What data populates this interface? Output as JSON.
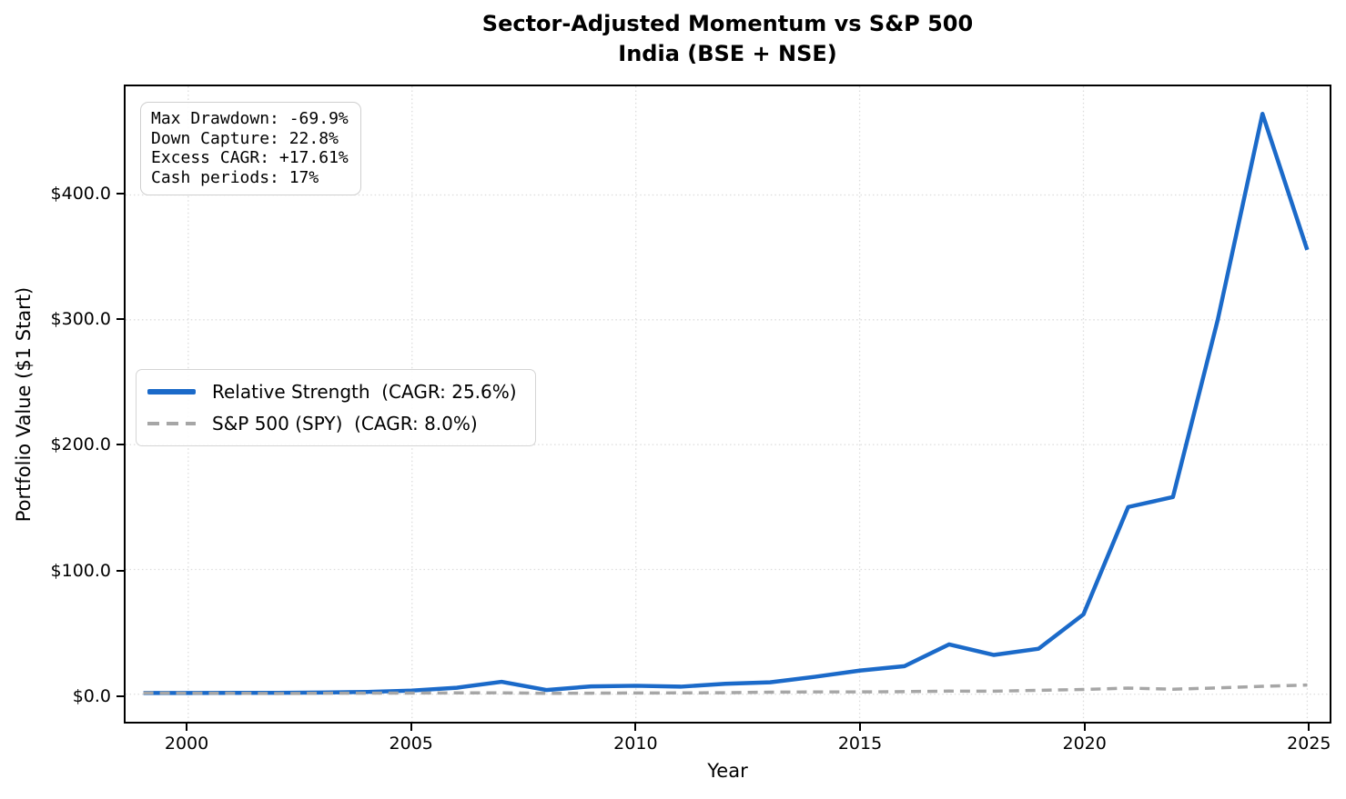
{
  "title": {
    "line1": "Sector-Adjusted Momentum vs S&P 500",
    "line2": "India (BSE + NSE)"
  },
  "stats_box": {
    "lines": [
      "Max Drawdown: -69.9%",
      "Down Capture: 22.8%",
      "Excess CAGR: +17.61%",
      "Cash periods: 17%"
    ]
  },
  "legend": {
    "items": [
      {
        "label": "Relative Strength  (CAGR: 25.6%)"
      },
      {
        "label": "S&P 500 (SPY)  (CAGR: 8.0%)"
      }
    ]
  },
  "axes": {
    "x_label": "Year",
    "y_label": "Portfolio Value ($1 Start)"
  },
  "colors": {
    "strategy_line": "#1b6ac9",
    "benchmark_line": "#a6a6a6",
    "grid": "#dcdcdc",
    "spine": "#000000"
  },
  "chart_data": {
    "type": "line",
    "title": "Sector-Adjusted Momentum vs S&P 500 — India (BSE + NSE)",
    "xlabel": "Year",
    "ylabel": "Portfolio Value ($1 Start)",
    "xlim": [
      1998.6,
      2025.5
    ],
    "ylim": [
      -22,
      487
    ],
    "grid": true,
    "grid_style": "dotted",
    "legend_position": "center left",
    "x": [
      1999,
      2000,
      2001,
      2002,
      2003,
      2004,
      2005,
      2006,
      2007,
      2008,
      2009,
      2010,
      2011,
      2012,
      2013,
      2014,
      2015,
      2016,
      2017,
      2018,
      2019,
      2020,
      2021,
      2022,
      2023,
      2024,
      2025
    ],
    "series": [
      {
        "name": "Relative Strength  (CAGR: 25.6%)",
        "color": "#1b6ac9",
        "style": "solid",
        "line_width": 4.5,
        "values": [
          1.0,
          1.05,
          1.1,
          1.15,
          1.4,
          1.9,
          3.0,
          5.2,
          10.0,
          3.4,
          6.3,
          6.8,
          6.1,
          8.4,
          9.6,
          14.0,
          19.0,
          22.5,
          40.0,
          31.5,
          36.5,
          64.0,
          150.0,
          158.0,
          300.0,
          465.0,
          356.0
        ]
      },
      {
        "name": "S&P 500 (SPY)  (CAGR: 8.0%)",
        "color": "#a6a6a6",
        "style": "dashed",
        "line_width": 3.5,
        "values": [
          1.0,
          0.91,
          0.8,
          0.62,
          0.8,
          0.89,
          0.93,
          1.08,
          1.14,
          0.72,
          0.91,
          1.05,
          1.07,
          1.24,
          1.64,
          1.86,
          1.89,
          2.11,
          2.57,
          2.46,
          3.23,
          3.82,
          4.92,
          4.05,
          5.1,
          6.38,
          7.4
        ]
      }
    ],
    "x_ticks": [
      {
        "value": 2000,
        "label": "2000"
      },
      {
        "value": 2005,
        "label": "2005"
      },
      {
        "value": 2010,
        "label": "2010"
      },
      {
        "value": 2015,
        "label": "2015"
      },
      {
        "value": 2020,
        "label": "2020"
      },
      {
        "value": 2025,
        "label": "2025"
      }
    ],
    "y_ticks": [
      {
        "value": 0,
        "label": "$0.0"
      },
      {
        "value": 100,
        "label": "$100.0"
      },
      {
        "value": 200,
        "label": "$200.0"
      },
      {
        "value": 300,
        "label": "$300.0"
      },
      {
        "value": 400,
        "label": "$400.0"
      }
    ],
    "annotations": {
      "max_drawdown": "-69.9%",
      "down_capture": "22.8%",
      "excess_cagr": "+17.61%",
      "cash_periods": "17%"
    }
  }
}
